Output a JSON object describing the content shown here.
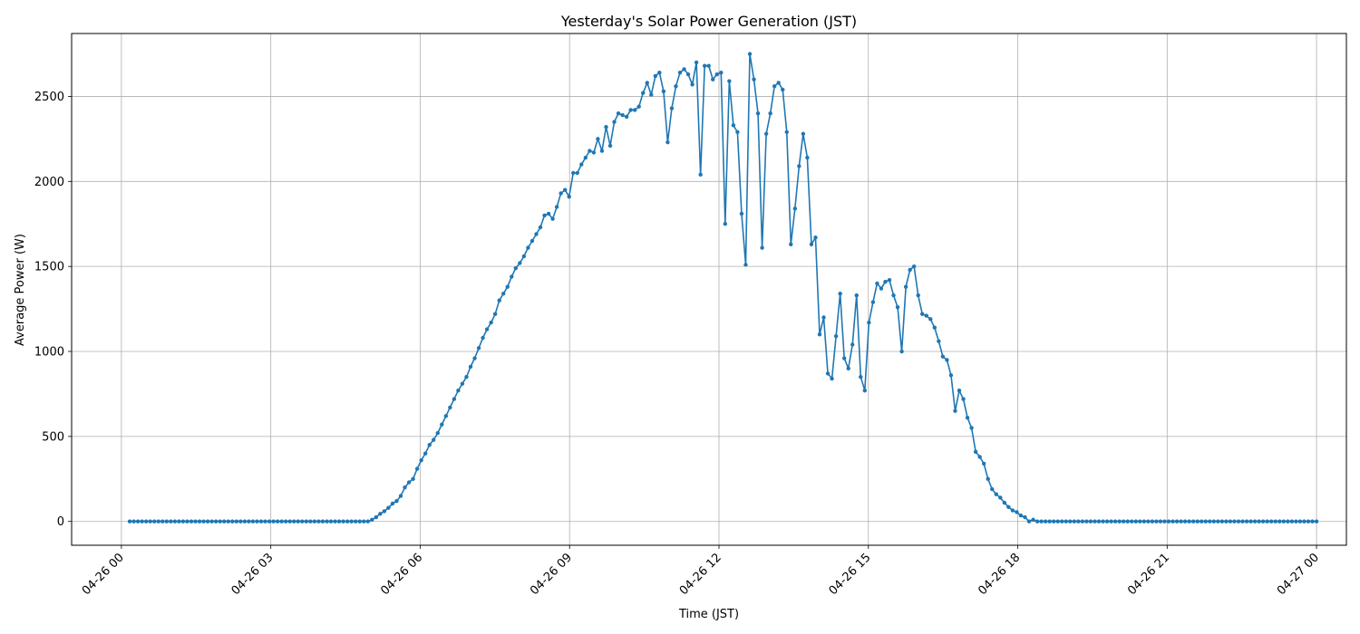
{
  "chart_data": {
    "type": "line",
    "title": "Yesterday's Solar Power Generation (JST)",
    "xlabel": "Time (JST)",
    "ylabel": "Average Power (W)",
    "x_ticks": [
      "04-26 00",
      "04-26 03",
      "04-26 06",
      "04-26 09",
      "04-26 12",
      "04-26 15",
      "04-26 18",
      "04-26 21",
      "04-27 00"
    ],
    "y_ticks": [
      "0",
      "500",
      "1000",
      "1500",
      "2000",
      "2500"
    ],
    "xlim": [
      "04-25 23:00",
      "04-27 00:36"
    ],
    "ylim": [
      -140,
      2870
    ],
    "grid": true,
    "x_interval_minutes": 5,
    "series": [
      {
        "color": "#1f77b4",
        "marker": "circle",
        "x_start": "04-26 00:10",
        "x_end": "04-27 00:00",
        "values": [
          0,
          0,
          0,
          0,
          0,
          0,
          0,
          0,
          0,
          0,
          0,
          0,
          0,
          0,
          0,
          0,
          0,
          0,
          0,
          0,
          0,
          0,
          0,
          0,
          0,
          0,
          0,
          0,
          0,
          0,
          0,
          0,
          0,
          0,
          0,
          0,
          0,
          0,
          0,
          0,
          0,
          0,
          0,
          0,
          0,
          0,
          0,
          0,
          0,
          0,
          0,
          0,
          0,
          0,
          0,
          0,
          0,
          0,
          0,
          10,
          25,
          45,
          60,
          80,
          105,
          120,
          150,
          200,
          230,
          250,
          310,
          360,
          400,
          450,
          480,
          520,
          570,
          620,
          670,
          720,
          770,
          810,
          850,
          910,
          960,
          1020,
          1080,
          1130,
          1170,
          1220,
          1300,
          1340,
          1380,
          1440,
          1490,
          1520,
          1560,
          1610,
          1650,
          1690,
          1730,
          1800,
          1810,
          1780,
          1850,
          1930,
          1950,
          1910,
          2050,
          2050,
          2100,
          2140,
          2180,
          2170,
          2250,
          2180,
          2320,
          2210,
          2350,
          2400,
          2390,
          2380,
          2420,
          2420,
          2440,
          2520,
          2580,
          2510,
          2620,
          2640,
          2530,
          2230,
          2430,
          2560,
          2640,
          2660,
          2630,
          2570,
          2700,
          2040,
          2680,
          2680,
          2600,
          2630,
          2640,
          1750,
          2590,
          2330,
          2290,
          1810,
          1510,
          2750,
          2600,
          2400,
          1610,
          2280,
          2400,
          2560,
          2580,
          2540,
          2290,
          1630,
          1840,
          2090,
          2280,
          2140,
          1630,
          1670,
          1100,
          1200,
          870,
          840,
          1090,
          1340,
          960,
          900,
          1040,
          1330,
          850,
          770,
          1170,
          1290,
          1400,
          1370,
          1410,
          1420,
          1330,
          1260,
          1000,
          1380,
          1480,
          1500,
          1330,
          1220,
          1210,
          1190,
          1140,
          1060,
          970,
          950,
          860,
          650,
          770,
          720,
          610,
          550,
          410,
          380,
          340,
          250,
          190,
          160,
          140,
          110,
          85,
          65,
          55,
          35,
          25,
          0,
          10,
          0,
          0,
          0,
          0,
          0,
          0,
          0,
          0,
          0,
          0,
          0,
          0,
          0,
          0,
          0,
          0,
          0,
          0,
          0,
          0,
          0,
          0,
          0,
          0,
          0,
          0,
          0,
          0,
          0,
          0,
          0,
          0,
          0,
          0,
          0,
          0,
          0,
          0,
          0,
          0,
          0,
          0,
          0,
          0,
          0,
          0,
          0,
          0,
          0,
          0,
          0,
          0,
          0,
          0,
          0,
          0,
          0,
          0,
          0,
          0,
          0,
          0,
          0,
          0,
          0,
          0,
          0,
          0,
          0
        ]
      }
    ]
  }
}
